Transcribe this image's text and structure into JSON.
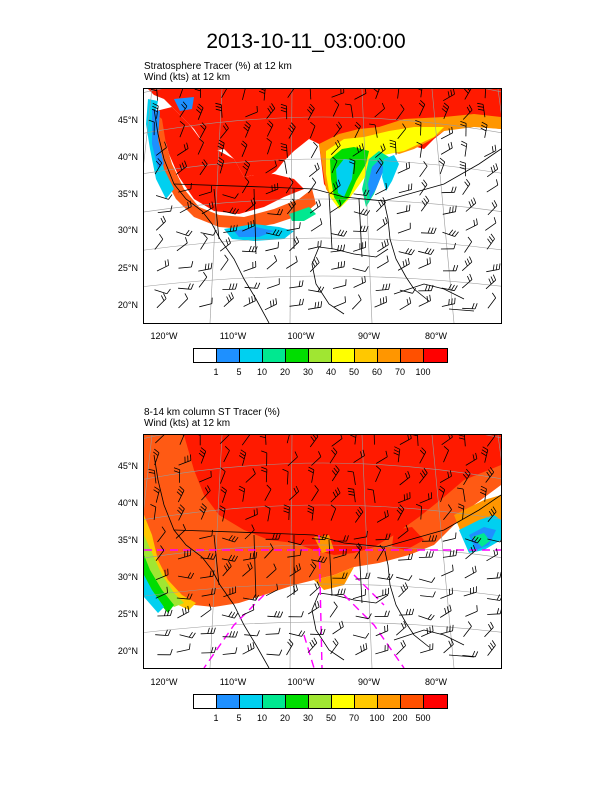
{
  "title": "2013-10-11_03:00:00",
  "panel1": {
    "line1": "Stratosphere Tracer   (%)     at   12 km",
    "line2": "Wind    (kts)      at   12 km",
    "lat_labels": [
      "45°N",
      "40°N",
      "35°N",
      "30°N",
      "25°N",
      "20°N"
    ],
    "lon_labels": [
      "120°W",
      "110°W",
      "100°W",
      "90°W",
      "80°W"
    ],
    "colorbar": {
      "colors": [
        "#ffffff",
        "#1e90ff",
        "#00d0f0",
        "#00e890",
        "#00dd00",
        "#a0e632",
        "#ffff00",
        "#ffc800",
        "#ff9600",
        "#ff5000",
        "#ff0000"
      ],
      "labels": [
        "1",
        "5",
        "10",
        "20",
        "30",
        "40",
        "50",
        "60",
        "70",
        "100"
      ]
    }
  },
  "panel2": {
    "line1": "8-14 km column ST Tracer   (%)",
    "line2": "Wind    (kts)      at   12 km",
    "lat_labels": [
      "45°N",
      "40°N",
      "35°N",
      "30°N",
      "25°N",
      "20°N"
    ],
    "lon_labels": [
      "120°W",
      "110°W",
      "100°W",
      "90°W",
      "80°W"
    ],
    "colorbar": {
      "colors": [
        "#ffffff",
        "#1e90ff",
        "#00d0f0",
        "#00e890",
        "#00dd00",
        "#a0e632",
        "#ffff00",
        "#ffc800",
        "#ff9600",
        "#ff5000",
        "#ff0000"
      ],
      "labels": [
        "1",
        "5",
        "10",
        "20",
        "30",
        "50",
        "70",
        "100",
        "200",
        "500"
      ]
    }
  },
  "palette": {
    "deep_red": "#ff1a00",
    "orange_red": "#ff5a14",
    "orange": "#ff9600",
    "yellow": "#ffff00",
    "green": "#00dd00",
    "cyan": "#00d0f0",
    "blue": "#1e90ff",
    "magenta_contour": "#ff00ff"
  }
}
